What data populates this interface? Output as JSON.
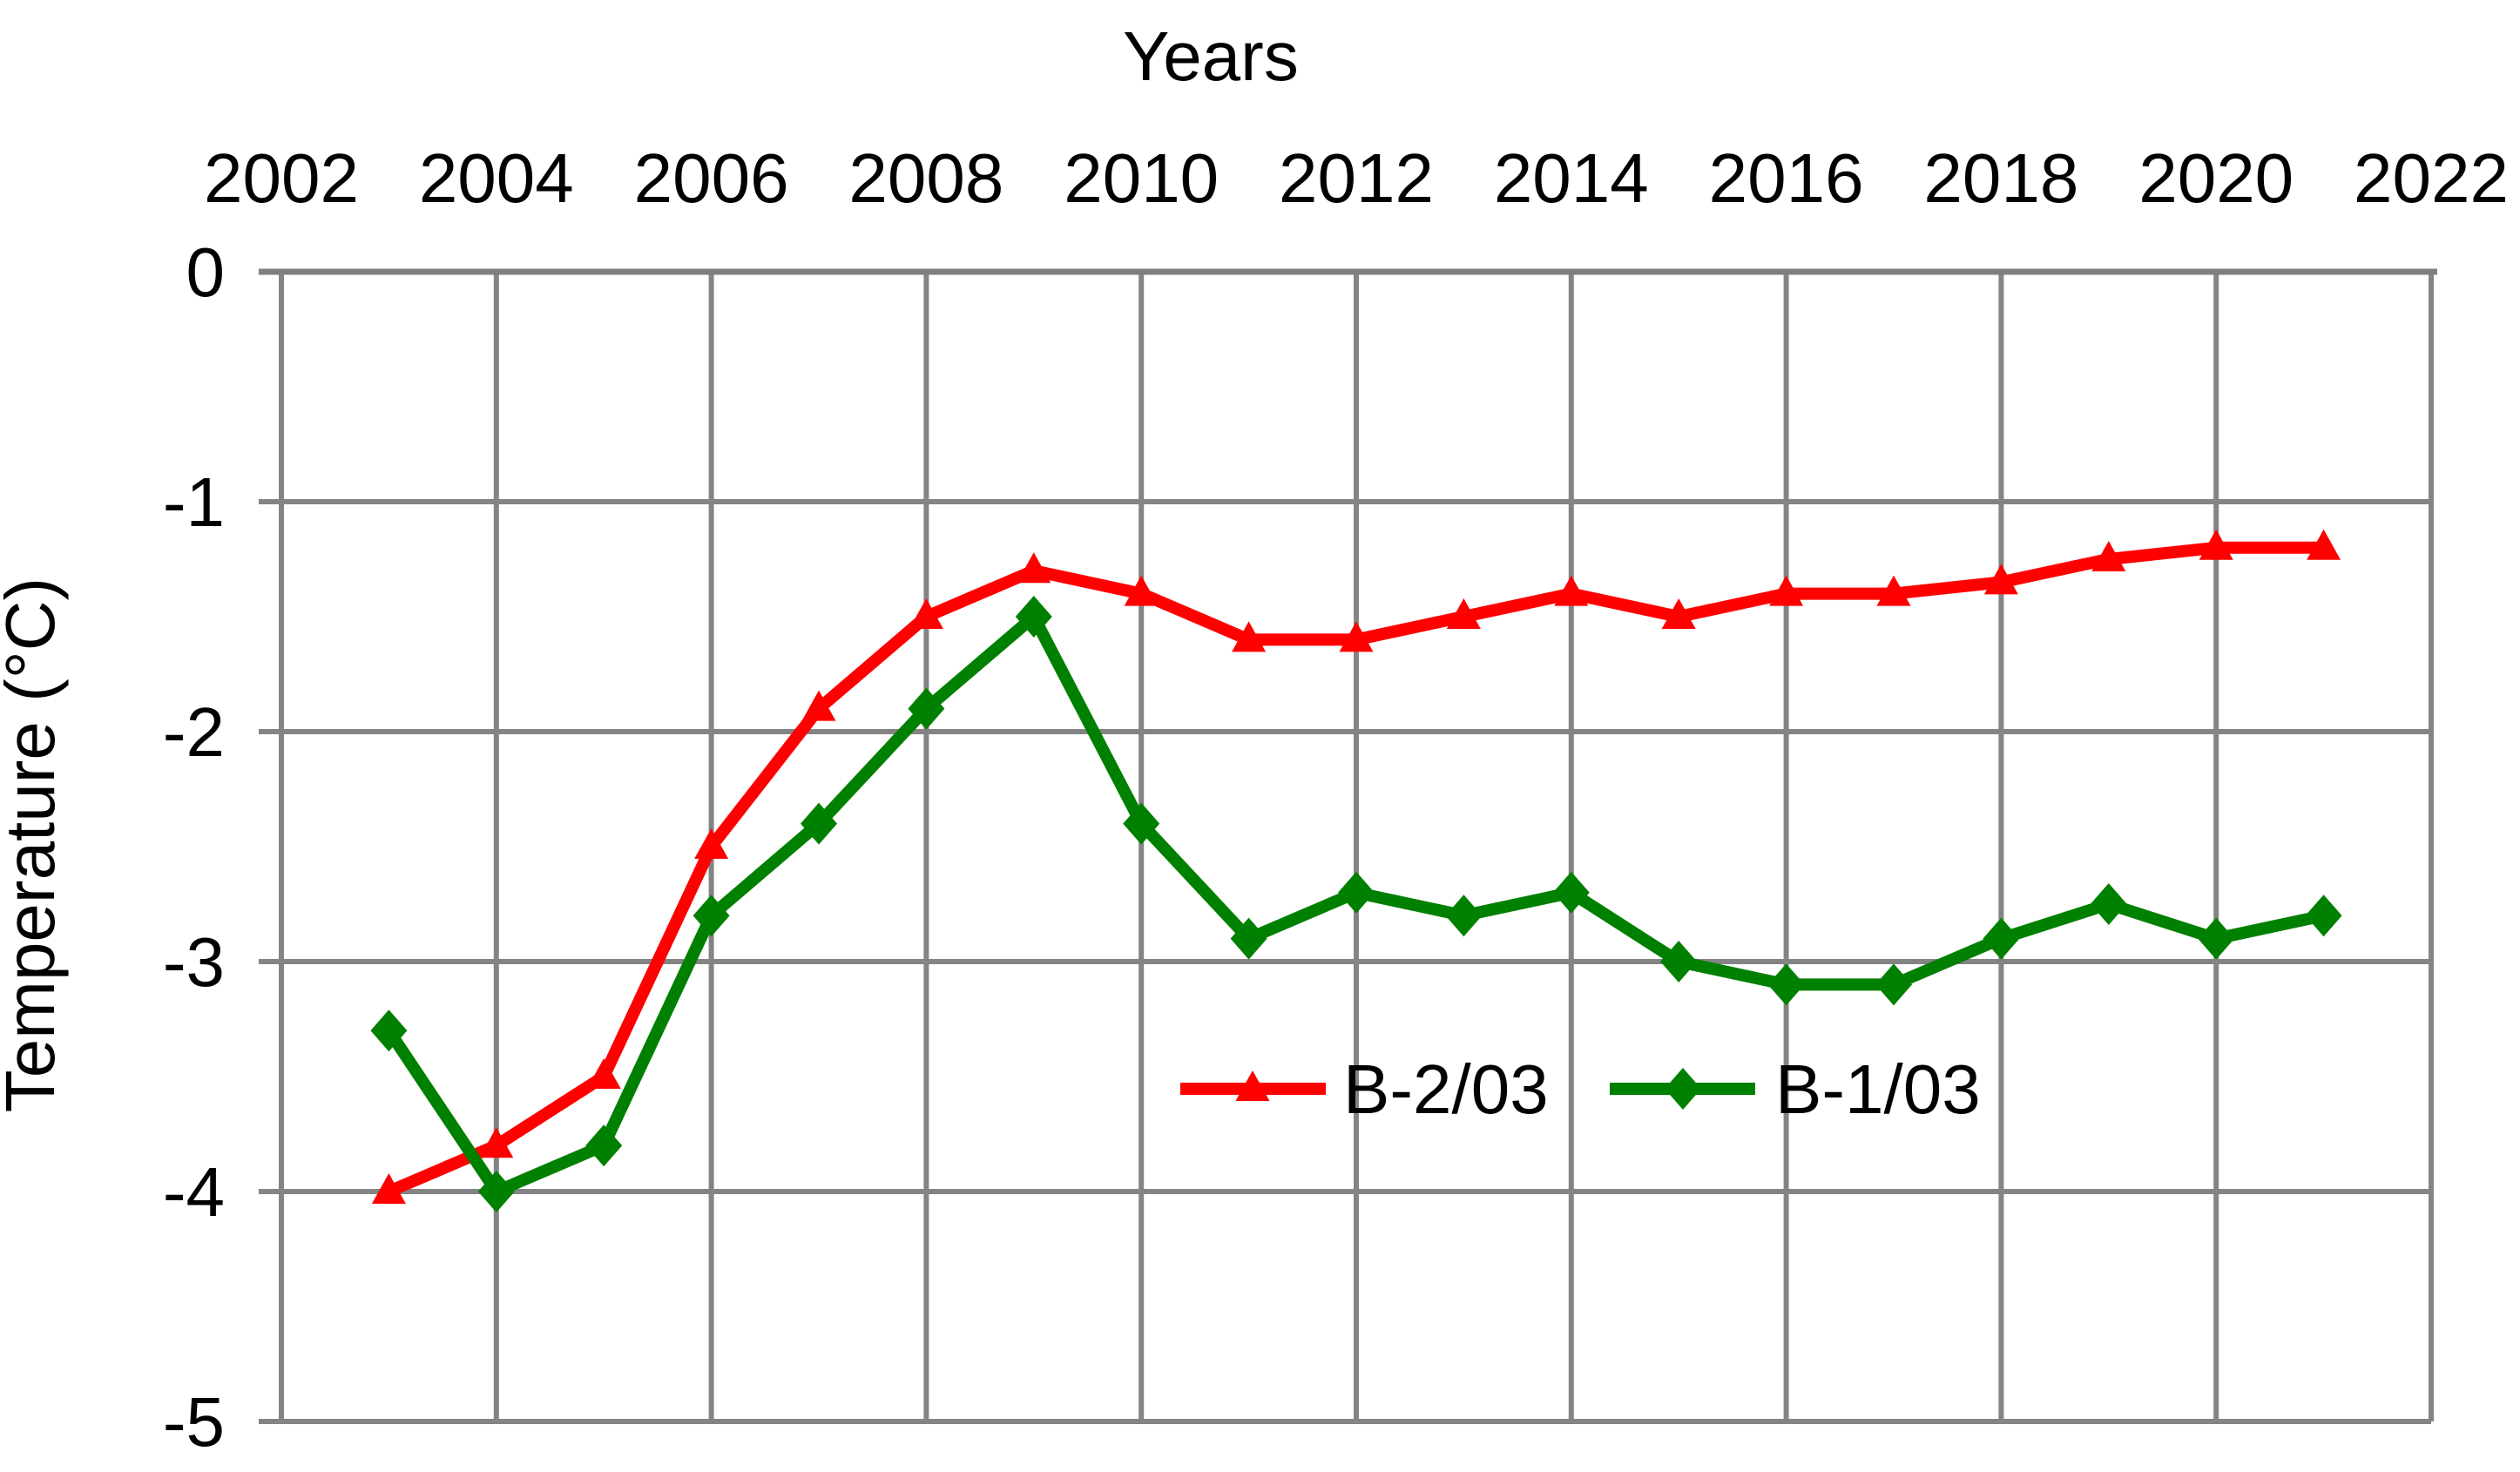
{
  "chart_data": {
    "type": "line",
    "title": "Years",
    "xlabel": "Years",
    "ylabel": "Temperature (°C)",
    "xlim": [
      2002,
      2022
    ],
    "ylim": [
      -5,
      0
    ],
    "x_ticks": [
      2002,
      2004,
      2006,
      2008,
      2010,
      2012,
      2014,
      2016,
      2018,
      2020,
      2022
    ],
    "y_ticks": [
      0,
      -1,
      -2,
      -3,
      -4,
      -5
    ],
    "grid": true,
    "legend_position": "inside-bottom-center",
    "x": [
      2003,
      2004,
      2005,
      2006,
      2007,
      2008,
      2009,
      2010,
      2011,
      2012,
      2013,
      2014,
      2015,
      2016,
      2017,
      2018,
      2019,
      2020,
      2021
    ],
    "series": [
      {
        "name": "B-2/03",
        "color": "#ff0000",
        "marker": "triangle",
        "values": [
          -4.0,
          -3.8,
          -3.5,
          -2.5,
          -1.9,
          -1.5,
          -1.3,
          -1.4,
          -1.6,
          -1.6,
          -1.5,
          -1.4,
          -1.5,
          -1.4,
          -1.4,
          -1.35,
          -1.25,
          -1.2,
          -1.2
        ]
      },
      {
        "name": "B-1/03",
        "color": "#008000",
        "marker": "diamond",
        "values": [
          -3.3,
          -4.0,
          -3.8,
          -2.8,
          -2.4,
          -1.9,
          -1.5,
          -2.4,
          -2.9,
          -2.7,
          -2.8,
          -2.7,
          -3.0,
          -3.1,
          -3.1,
          -2.9,
          -2.75,
          -2.9,
          -2.8
        ]
      }
    ],
    "colors": {
      "grid": "#848484",
      "axis": "#7f7f7f",
      "text": "#000000",
      "background": "#ffffff"
    },
    "legend": {
      "items": [
        "B-2/03",
        "B-1/03"
      ]
    }
  }
}
